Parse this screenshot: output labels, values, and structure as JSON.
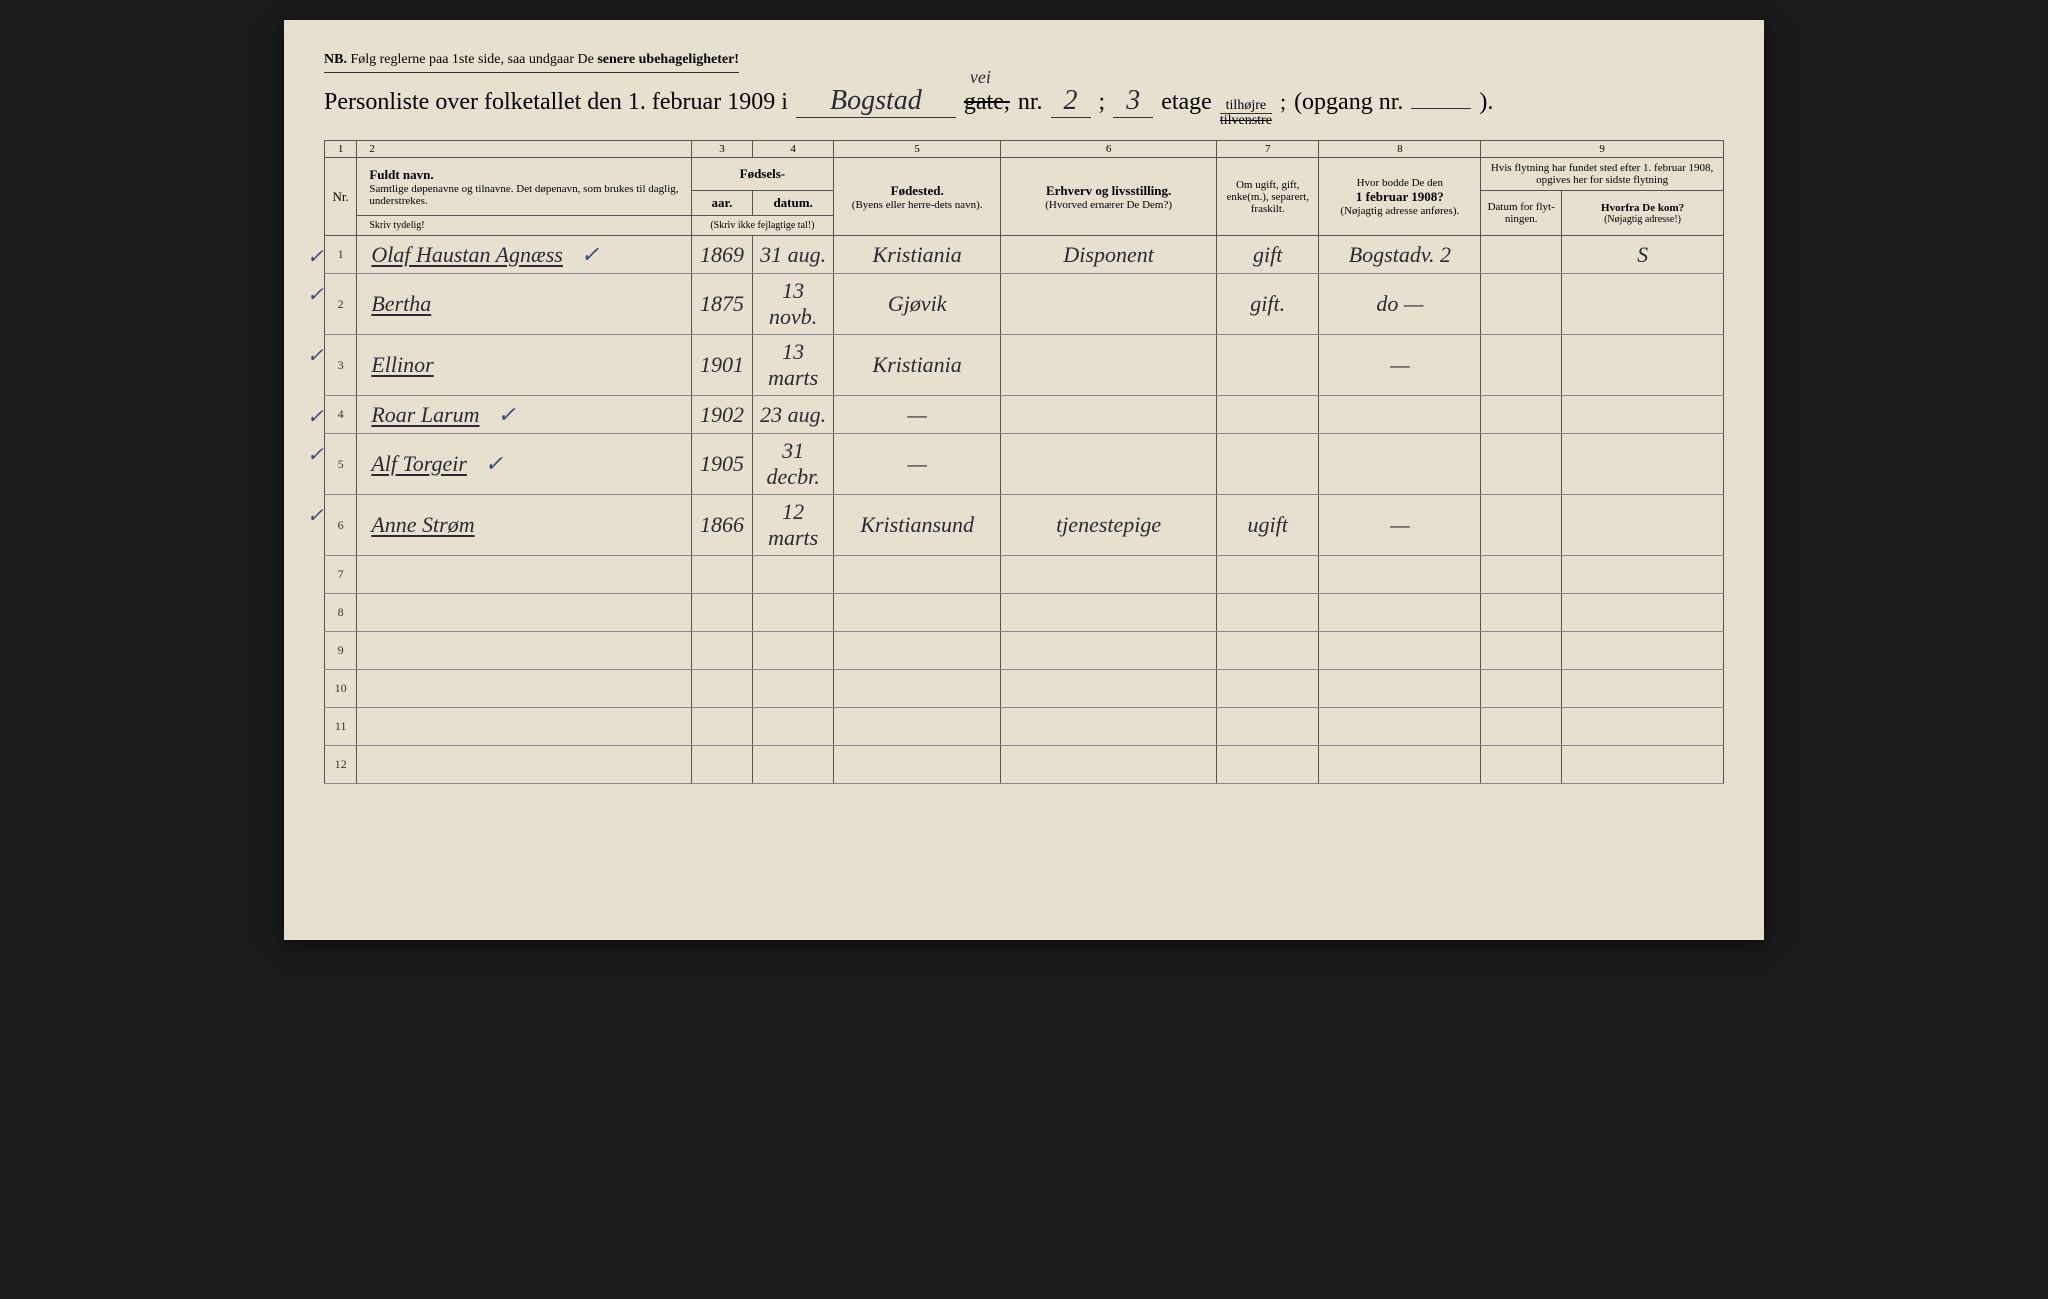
{
  "styling": {
    "paper_bg": "#e8e0ce",
    "page_bg": "#1a1a1a",
    "ink_color": "#2a2a35",
    "print_color": "#333333",
    "border_color": "#555555",
    "row_border": "#888888",
    "checkmark_color": "#3a4a7a",
    "font_printed": "Times New Roman",
    "font_handwritten": "Brush Script MT",
    "title_fontsize": 24,
    "header_fontsize": 13,
    "subheader_fontsize": 11,
    "body_fontsize": 22
  },
  "header": {
    "nb_prefix": "NB.",
    "nb_text": "Følg reglerne paa 1ste side, saa undgaar De",
    "nb_bold": "senere ubehageligheter!",
    "title_prefix": "Personliste over folketallet den 1. februar 1909 i",
    "street_handwritten": "Bogstad",
    "gate_label": "gate,",
    "gate_annotation": "vei",
    "nr_label": "nr.",
    "nr_value": "2",
    "semicolon": ";",
    "etage_value": "3",
    "etage_label": "etage",
    "side_tilhojre": "tilhøjre",
    "side_tilvenstre": "tilvenstre",
    "opgang_label": "(opgang nr.",
    "opgang_close": ")."
  },
  "columns": {
    "num_labels": [
      "1",
      "2",
      "3",
      "4",
      "5",
      "6",
      "7",
      "8",
      "9"
    ],
    "c1_nr": "Nr.",
    "c2_main": "Fuldt navn.",
    "c2_sub": "Samtlige døpenavne og tilnavne. Det døpenavn, som brukes til daglig, understrekes.",
    "c2_hint": "Skriv tydelig!",
    "c34_group": "Fødsels-",
    "c3_main": "aar.",
    "c4_main": "datum.",
    "c34_hint": "(Skriv ikke fejlagtige tal!)",
    "c5_main": "Fødested.",
    "c5_sub": "(Byens eller herre-dets navn).",
    "c6_main": "Erhverv og livsstilling.",
    "c6_sub": "(Hvorved ernærer De Dem?)",
    "c7_main": "Om ugift, gift, enke(m.), separert, fraskilt.",
    "c8_main_a": "Hvor bodde De den",
    "c8_main_b": "1 februar 1908?",
    "c8_sub": "(Nøjagtig adresse anføres).",
    "c9_top": "Hvis flytning har fundet sted efter 1. februar 1908, opgives her for sidste flytning",
    "c9a_main": "Datum for flyt-ningen.",
    "c9b_main": "Hvorfra De kom?",
    "c9b_sub": "(Nøjagtig adresse!)"
  },
  "rows": [
    {
      "nr": "1",
      "check": "✓",
      "name": "Olaf Haustan Agnæss",
      "name_check": "✓",
      "year": "1869",
      "date": "31 aug.",
      "birthplace": "Kristiania",
      "occupation": "Disponent",
      "marital": "gift",
      "prev_addr": "Bogstadv. 2",
      "move_date": "",
      "move_from": "S"
    },
    {
      "nr": "2",
      "check": "✓",
      "name": "Bertha",
      "name_check": "",
      "year": "1875",
      "date": "13 novb.",
      "birthplace": "Gjøvik",
      "occupation": "",
      "marital": "gift.",
      "prev_addr": "do —",
      "move_date": "",
      "move_from": ""
    },
    {
      "nr": "3",
      "check": "✓",
      "name": "Ellinor",
      "name_check": "",
      "year": "1901",
      "date": "13 marts",
      "birthplace": "Kristiania",
      "occupation": "",
      "marital": "",
      "prev_addr": "—",
      "move_date": "",
      "move_from": ""
    },
    {
      "nr": "4",
      "check": "✓",
      "name": "Roar Larum",
      "name_check": "✓",
      "year": "1902",
      "date": "23 aug.",
      "birthplace": "—",
      "occupation": "",
      "marital": "",
      "prev_addr": "",
      "move_date": "",
      "move_from": ""
    },
    {
      "nr": "5",
      "check": "✓",
      "name": "Alf Torgeir",
      "name_check": "✓",
      "year": "1905",
      "date": "31 decbr.",
      "birthplace": "—",
      "occupation": "",
      "marital": "",
      "prev_addr": "",
      "move_date": "",
      "move_from": ""
    },
    {
      "nr": "6",
      "check": "✓",
      "name": "Anne Strøm",
      "name_check": "",
      "year": "1866",
      "date": "12 marts",
      "birthplace": "Kristiansund",
      "occupation": "tjenestepige",
      "marital": "ugift",
      "prev_addr": "—",
      "move_date": "",
      "move_from": ""
    },
    {
      "nr": "7",
      "check": "",
      "name": "",
      "name_check": "",
      "year": "",
      "date": "",
      "birthplace": "",
      "occupation": "",
      "marital": "",
      "prev_addr": "",
      "move_date": "",
      "move_from": ""
    },
    {
      "nr": "8",
      "check": "",
      "name": "",
      "name_check": "",
      "year": "",
      "date": "",
      "birthplace": "",
      "occupation": "",
      "marital": "",
      "prev_addr": "",
      "move_date": "",
      "move_from": ""
    },
    {
      "nr": "9",
      "check": "",
      "name": "",
      "name_check": "",
      "year": "",
      "date": "",
      "birthplace": "",
      "occupation": "",
      "marital": "",
      "prev_addr": "",
      "move_date": "",
      "move_from": ""
    },
    {
      "nr": "10",
      "check": "",
      "name": "",
      "name_check": "",
      "year": "",
      "date": "",
      "birthplace": "",
      "occupation": "",
      "marital": "",
      "prev_addr": "",
      "move_date": "",
      "move_from": ""
    },
    {
      "nr": "11",
      "check": "",
      "name": "",
      "name_check": "",
      "year": "",
      "date": "",
      "birthplace": "",
      "occupation": "",
      "marital": "",
      "prev_addr": "",
      "move_date": "",
      "move_from": ""
    },
    {
      "nr": "12",
      "check": "",
      "name": "",
      "name_check": "",
      "year": "",
      "date": "",
      "birthplace": "",
      "occupation": "",
      "marital": "",
      "prev_addr": "",
      "move_date": "",
      "move_from": ""
    }
  ]
}
